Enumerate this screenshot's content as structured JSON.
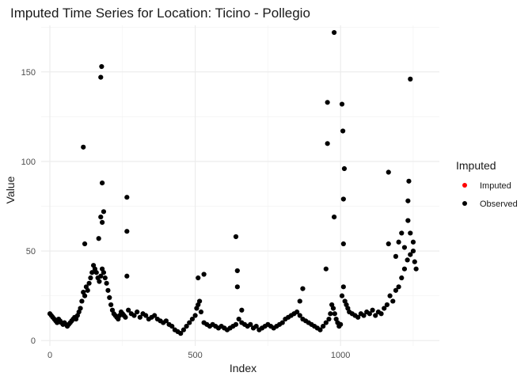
{
  "chart_data": {
    "type": "scatter",
    "title": "Imputed Time Series for Location: Ticino - Pollegio",
    "xlabel": "Index",
    "ylabel": "Value",
    "xlim": [
      -30,
      1340
    ],
    "ylim": [
      -3,
      176
    ],
    "x_ticks": [
      0,
      500,
      1000
    ],
    "y_ticks": [
      0,
      50,
      100,
      150
    ],
    "grid": true,
    "legend": {
      "title": "Imputed",
      "position": "right"
    },
    "series": [
      {
        "name": "Imputed",
        "color": "#ff0000",
        "points": []
      },
      {
        "name": "Observed",
        "color": "#000000",
        "points": [
          [
            0,
            15
          ],
          [
            5,
            14
          ],
          [
            10,
            13
          ],
          [
            15,
            12
          ],
          [
            20,
            11
          ],
          [
            25,
            10
          ],
          [
            30,
            12
          ],
          [
            35,
            11
          ],
          [
            40,
            10
          ],
          [
            45,
            9
          ],
          [
            50,
            10
          ],
          [
            55,
            9
          ],
          [
            60,
            8
          ],
          [
            65,
            9
          ],
          [
            70,
            10
          ],
          [
            75,
            11
          ],
          [
            80,
            12
          ],
          [
            85,
            13
          ],
          [
            90,
            12
          ],
          [
            95,
            14
          ],
          [
            100,
            16
          ],
          [
            105,
            18
          ],
          [
            110,
            22
          ],
          [
            115,
            27
          ],
          [
            120,
            25
          ],
          [
            125,
            30
          ],
          [
            130,
            28
          ],
          [
            135,
            32
          ],
          [
            140,
            35
          ],
          [
            145,
            38
          ],
          [
            150,
            42
          ],
          [
            155,
            40
          ],
          [
            160,
            38
          ],
          [
            165,
            35
          ],
          [
            170,
            33
          ],
          [
            175,
            36
          ],
          [
            180,
            40
          ],
          [
            185,
            38
          ],
          [
            190,
            35
          ],
          [
            195,
            32
          ],
          [
            200,
            28
          ],
          [
            205,
            24
          ],
          [
            210,
            20
          ],
          [
            215,
            17
          ],
          [
            220,
            15
          ],
          [
            225,
            14
          ],
          [
            230,
            13
          ],
          [
            235,
            12
          ],
          [
            240,
            14
          ],
          [
            245,
            16
          ],
          [
            250,
            15
          ],
          [
            255,
            14
          ],
          [
            260,
            13
          ],
          [
            270,
            17
          ],
          [
            280,
            15
          ],
          [
            290,
            14
          ],
          [
            300,
            16
          ],
          [
            310,
            13
          ],
          [
            320,
            15
          ],
          [
            330,
            14
          ],
          [
            340,
            12
          ],
          [
            350,
            13
          ],
          [
            360,
            14
          ],
          [
            370,
            12
          ],
          [
            380,
            11
          ],
          [
            390,
            10
          ],
          [
            400,
            11
          ],
          [
            410,
            9
          ],
          [
            420,
            8
          ],
          [
            430,
            6
          ],
          [
            440,
            5
          ],
          [
            450,
            4
          ],
          [
            460,
            6
          ],
          [
            470,
            8
          ],
          [
            480,
            10
          ],
          [
            490,
            12
          ],
          [
            500,
            14
          ],
          [
            505,
            18
          ],
          [
            510,
            20
          ],
          [
            515,
            22
          ],
          [
            520,
            16
          ],
          [
            530,
            10
          ],
          [
            540,
            9
          ],
          [
            550,
            8
          ],
          [
            560,
            9
          ],
          [
            570,
            8
          ],
          [
            580,
            7
          ],
          [
            590,
            8
          ],
          [
            600,
            7
          ],
          [
            610,
            6
          ],
          [
            620,
            7
          ],
          [
            630,
            8
          ],
          [
            640,
            9
          ],
          [
            650,
            12
          ],
          [
            660,
            10
          ],
          [
            670,
            9
          ],
          [
            680,
            8
          ],
          [
            690,
            9
          ],
          [
            700,
            7
          ],
          [
            710,
            8
          ],
          [
            720,
            6
          ],
          [
            730,
            7
          ],
          [
            740,
            8
          ],
          [
            750,
            9
          ],
          [
            760,
            8
          ],
          [
            770,
            7
          ],
          [
            780,
            8
          ],
          [
            790,
            9
          ],
          [
            800,
            10
          ],
          [
            810,
            12
          ],
          [
            820,
            13
          ],
          [
            830,
            14
          ],
          [
            840,
            15
          ],
          [
            850,
            16
          ],
          [
            860,
            14
          ],
          [
            870,
            12
          ],
          [
            880,
            11
          ],
          [
            890,
            10
          ],
          [
            900,
            9
          ],
          [
            910,
            8
          ],
          [
            920,
            7
          ],
          [
            930,
            6
          ],
          [
            940,
            8
          ],
          [
            950,
            10
          ],
          [
            960,
            12
          ],
          [
            965,
            15
          ],
          [
            970,
            20
          ],
          [
            975,
            18
          ],
          [
            980,
            15
          ],
          [
            985,
            12
          ],
          [
            990,
            10
          ],
          [
            995,
            8
          ],
          [
            1000,
            9
          ],
          [
            1005,
            25
          ],
          [
            1010,
            30
          ],
          [
            1015,
            22
          ],
          [
            1020,
            20
          ],
          [
            1025,
            18
          ],
          [
            1030,
            16
          ],
          [
            1040,
            15
          ],
          [
            1050,
            14
          ],
          [
            1060,
            13
          ],
          [
            1070,
            15
          ],
          [
            1080,
            14
          ],
          [
            1090,
            16
          ],
          [
            1100,
            15
          ],
          [
            1110,
            17
          ],
          [
            1120,
            14
          ],
          [
            1130,
            16
          ],
          [
            1140,
            15
          ],
          [
            1150,
            18
          ],
          [
            1160,
            20
          ],
          [
            1170,
            25
          ],
          [
            1180,
            22
          ],
          [
            1190,
            28
          ],
          [
            1200,
            30
          ],
          [
            1210,
            35
          ],
          [
            1220,
            40
          ],
          [
            1230,
            45
          ],
          [
            1240,
            48
          ],
          [
            1250,
            50
          ],
          [
            1255,
            44
          ],
          [
            1260,
            40
          ],
          [
            115,
            108
          ],
          [
            175,
            147
          ],
          [
            178,
            153
          ],
          [
            180,
            88
          ],
          [
            185,
            72
          ],
          [
            175,
            69
          ],
          [
            180,
            66
          ],
          [
            168,
            57
          ],
          [
            120,
            54
          ],
          [
            265,
            80
          ],
          [
            265,
            61
          ],
          [
            265,
            36
          ],
          [
            510,
            35
          ],
          [
            530,
            37
          ],
          [
            640,
            58
          ],
          [
            645,
            39
          ],
          [
            645,
            30
          ],
          [
            660,
            17
          ],
          [
            955,
            133
          ],
          [
            955,
            110
          ],
          [
            978,
            172
          ],
          [
            978,
            69
          ],
          [
            1005,
            132
          ],
          [
            1008,
            117
          ],
          [
            1013,
            96
          ],
          [
            1010,
            79
          ],
          [
            1010,
            54
          ],
          [
            950,
            40
          ],
          [
            1165,
            94
          ],
          [
            1165,
            54
          ],
          [
            1240,
            146
          ],
          [
            1235,
            89
          ],
          [
            1232,
            78
          ],
          [
            1232,
            67
          ],
          [
            1240,
            60
          ],
          [
            1250,
            55
          ],
          [
            1210,
            60
          ],
          [
            1200,
            55
          ],
          [
            1220,
            52
          ],
          [
            870,
            29
          ],
          [
            860,
            22
          ],
          [
            1190,
            47
          ]
        ]
      }
    ]
  }
}
